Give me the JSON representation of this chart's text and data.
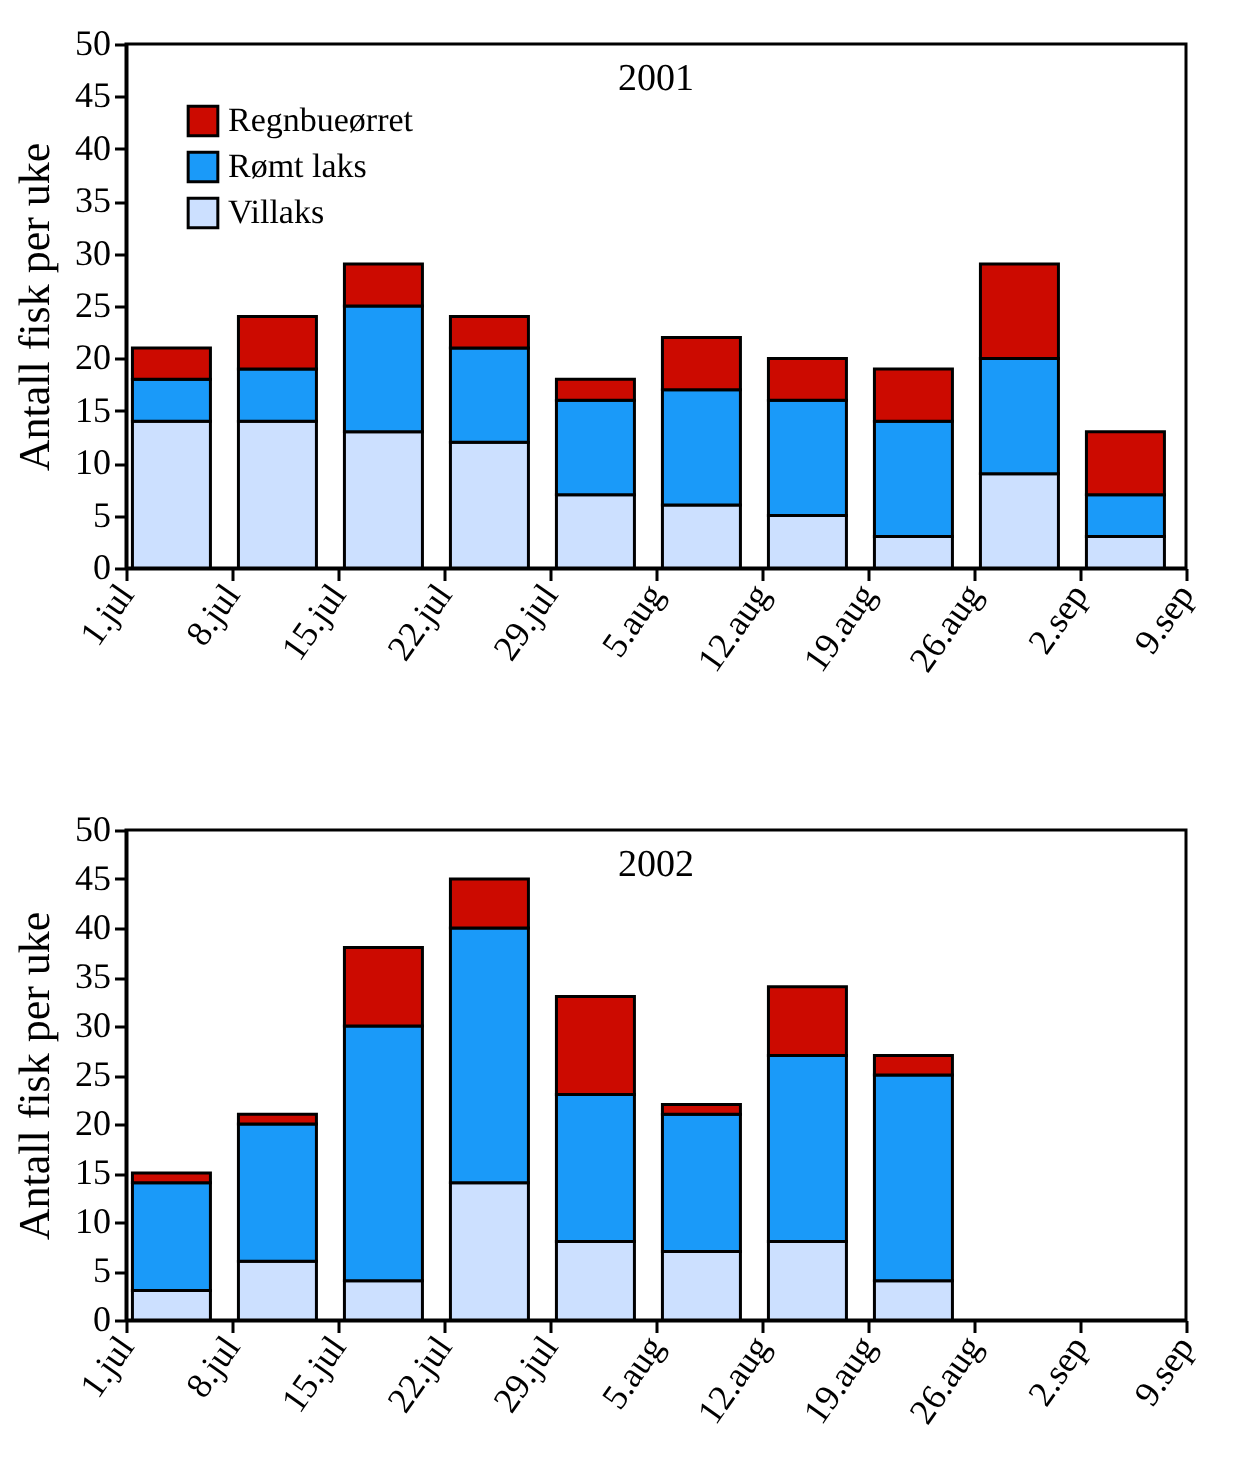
{
  "chart_data": [
    {
      "type": "bar",
      "title": "2001",
      "ylabel": "Antall fisk per uke",
      "stacked": true,
      "legend": "top left",
      "grid": false,
      "x": [
        "--07-04",
        "--07-11",
        "--07-18",
        "--07-25",
        "--08-01",
        "--08-08",
        "--08-15",
        "--08-22",
        "--08-29",
        "--09-05"
      ],
      "xlim": [
        "--07-01",
        "--09-09"
      ],
      "xticks": [
        {
          "value": "--07-01",
          "label": "1.jul"
        },
        {
          "value": "--07-08",
          "label": "8.jul"
        },
        {
          "value": "--07-15",
          "label": "15.jul"
        },
        {
          "value": "--07-22",
          "label": "22.jul"
        },
        {
          "value": "--07-29",
          "label": "29.jul"
        },
        {
          "value": "--08-05",
          "label": "5.aug"
        },
        {
          "value": "--08-12",
          "label": "12.aug"
        },
        {
          "value": "--08-19",
          "label": "19.aug"
        },
        {
          "value": "--08-26",
          "label": "26.aug"
        },
        {
          "value": "--09-02",
          "label": "2.sep"
        },
        {
          "value": "--09-09",
          "label": "9.sep"
        }
      ],
      "ylim": [
        0,
        50
      ],
      "yticks": [
        0,
        5,
        10,
        15,
        20,
        25,
        30,
        35,
        40,
        45,
        50
      ],
      "series": [
        {
          "name": "Villaks",
          "color": "#cce0ff",
          "values": [
            14,
            14,
            13,
            12,
            7,
            6,
            5,
            3,
            9,
            3
          ]
        },
        {
          "name": "Rømt laks",
          "color": "#1a9af9",
          "values": [
            4,
            5,
            12,
            9,
            9,
            11,
            11,
            11,
            11,
            4
          ]
        },
        {
          "name": "Regnbueørret",
          "color": "#cc0a00",
          "values": [
            3,
            5,
            4,
            3,
            2,
            5,
            4,
            5,
            9,
            6
          ]
        }
      ]
    },
    {
      "type": "bar",
      "title": "2002",
      "ylabel": "Antall fisk per uke",
      "stacked": true,
      "legend": false,
      "grid": false,
      "x": [
        "--07-04",
        "--07-11",
        "--07-18",
        "--07-25",
        "--08-01",
        "--08-08",
        "--08-15",
        "--08-22"
      ],
      "xlim": [
        "--07-01",
        "--09-09"
      ],
      "xticks": [
        {
          "value": "--07-01",
          "label": "1.jul"
        },
        {
          "value": "--07-08",
          "label": "8.jul"
        },
        {
          "value": "--07-15",
          "label": "15.jul"
        },
        {
          "value": "--07-22",
          "label": "22.jul"
        },
        {
          "value": "--07-29",
          "label": "29.jul"
        },
        {
          "value": "--08-05",
          "label": "5.aug"
        },
        {
          "value": "--08-12",
          "label": "12.aug"
        },
        {
          "value": "--08-19",
          "label": "19.aug"
        },
        {
          "value": "--08-26",
          "label": "26.aug"
        },
        {
          "value": "--09-02",
          "label": "2.sep"
        },
        {
          "value": "--09-09",
          "label": "9.sep"
        }
      ],
      "ylim": [
        0,
        50
      ],
      "yticks": [
        0,
        5,
        10,
        15,
        20,
        25,
        30,
        35,
        40,
        45,
        50
      ],
      "series": [
        {
          "color": "#cce0ff",
          "values": [
            3,
            6,
            4,
            14,
            8,
            7,
            8,
            4
          ]
        },
        {
          "color": "#1a9af9",
          "values": [
            11,
            14,
            26,
            26,
            15,
            14,
            19,
            21
          ]
        },
        {
          "color": "#cc0a00",
          "values": [
            1,
            1,
            8,
            5,
            10,
            1,
            7,
            2
          ]
        }
      ]
    }
  ]
}
